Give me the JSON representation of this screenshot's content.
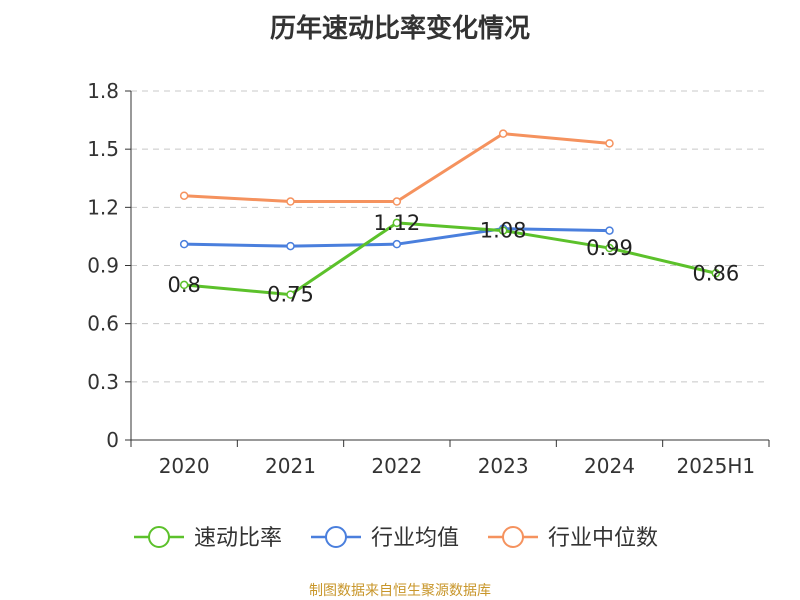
{
  "chart_data": {
    "type": "line",
    "title": "历年速动比率变化情况",
    "categories": [
      "2020",
      "2021",
      "2022",
      "2023",
      "2024",
      "2025H1"
    ],
    "ylim": [
      0,
      1.8
    ],
    "yticks": [
      0,
      0.3,
      0.6,
      0.9,
      1.2,
      1.5,
      1.8
    ],
    "ytick_labels": [
      "0",
      "0.3",
      "0.6",
      "0.9",
      "1.2",
      "1.5",
      "1.8"
    ],
    "grid": true,
    "legend_position": "bottom",
    "series": [
      {
        "name": "速动比率",
        "color": "#5cc12b",
        "values": [
          0.8,
          0.75,
          1.12,
          1.08,
          0.99,
          0.86
        ],
        "data_labels": [
          "0.8",
          "0.75",
          "1.12",
          "1.08",
          "0.99",
          "0.86"
        ]
      },
      {
        "name": "行业均值",
        "color": "#4a7fdd",
        "values": [
          1.01,
          1.0,
          1.01,
          1.09,
          1.08,
          null
        ]
      },
      {
        "name": "行业中位数",
        "color": "#f5925e",
        "values": [
          1.26,
          1.23,
          1.23,
          1.58,
          1.53,
          null
        ]
      }
    ]
  },
  "footer": {
    "source": "制图数据来自恒生聚源数据库"
  }
}
